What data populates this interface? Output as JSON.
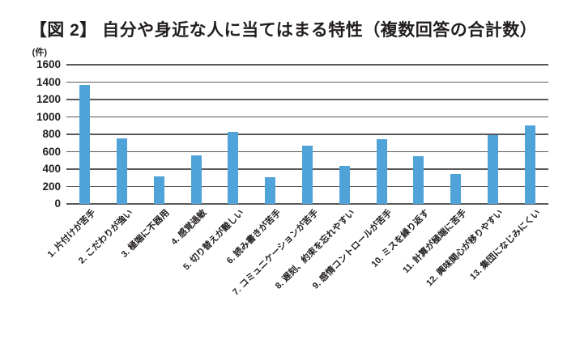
{
  "header": {
    "title": "【図 2】 自分や身近な人に当てはまる特性（複数回答の合計数）"
  },
  "chart_data": {
    "type": "bar",
    "figure_label": "【図 2】",
    "title": "自分や身近な人に当てはまる特性（複数回答の合計数）",
    "unit_label": "(件)",
    "categories": [
      "1. 片付けが苦手",
      "2. こだわりが強い",
      "3. 極端に不器用",
      "4. 感覚過敏",
      "5. 切り替えが難しい",
      "6. 読み書きが苦手",
      "7. コミュニケーションが苦手",
      "8. 遅刻、約束を忘れやすい",
      "9. 感情コントロールが苦手",
      "10. ミスを繰り返す",
      "11. 計算が極端に苦手",
      "12. 興味関心が移りやすい",
      "13. 集団になじみにくい"
    ],
    "values": [
      1370,
      750,
      320,
      560,
      830,
      310,
      670,
      440,
      740,
      550,
      340,
      790,
      900
    ],
    "xlabel": "",
    "ylabel": "件",
    "ylim": [
      0,
      1600
    ],
    "ytick_step": 200,
    "yticks": [
      0,
      200,
      400,
      600,
      800,
      1000,
      1200,
      1400,
      1600
    ],
    "grid": true,
    "legend": "none",
    "bar_color": "#4fa3d8",
    "gridline_color": "#595959",
    "text_color": "#221e1e",
    "background_color": "#ffffff"
  }
}
